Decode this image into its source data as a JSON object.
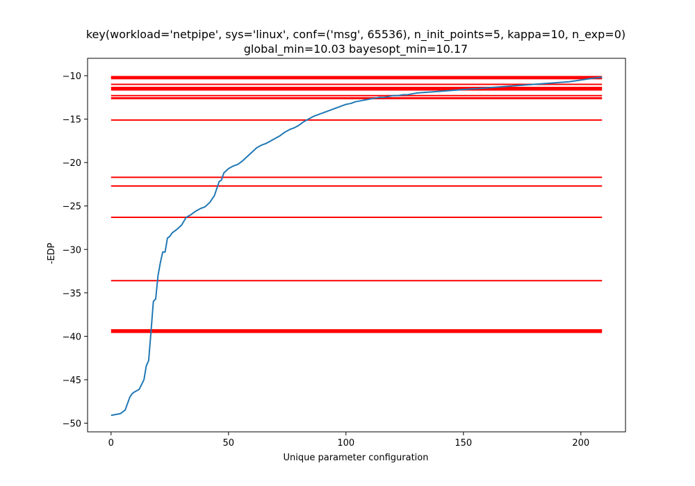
{
  "chart_data": {
    "type": "line",
    "title": "key(workload='netpipe', sys='linux', conf=('msg', 65536), n_init_points=5, kappa=10, n_exp=0)",
    "subtitle": "global_min=10.03 bayesopt_min=10.17",
    "xlabel": "Unique parameter configuration",
    "ylabel": "-EDP",
    "xlim": [
      -10,
      219
    ],
    "ylim": [
      -51,
      -8
    ],
    "xticks": [
      0,
      50,
      100,
      150,
      200
    ],
    "yticks": [
      -10,
      -15,
      -20,
      -25,
      -30,
      -35,
      -40,
      -45,
      -50
    ],
    "grid": false,
    "colors": {
      "series": "#1f77b4",
      "hlines": "#ff0000"
    },
    "series": [
      {
        "x": [
          0,
          2,
          4,
          6,
          8,
          9,
          10,
          12,
          14,
          15,
          16,
          17,
          18,
          19,
          20,
          21,
          22,
          23,
          24,
          25,
          26,
          28,
          30,
          32,
          34,
          36,
          38,
          40,
          42,
          44,
          46,
          47,
          48,
          50,
          52,
          54,
          56,
          58,
          60,
          62,
          64,
          66,
          68,
          70,
          72,
          74,
          76,
          78,
          80,
          82,
          84,
          86,
          88,
          90,
          92,
          94,
          96,
          98,
          100,
          102,
          104,
          106,
          108,
          110,
          112,
          114,
          116,
          118,
          120,
          122,
          124,
          126,
          128,
          130,
          135,
          140,
          145,
          150,
          155,
          160,
          165,
          170,
          175,
          180,
          185,
          190,
          195,
          200,
          205,
          209
        ],
        "y": [
          -49.1,
          -49.0,
          -48.9,
          -48.5,
          -47.0,
          -46.6,
          -46.4,
          -46.1,
          -45.0,
          -43.4,
          -42.8,
          -39.5,
          -36.0,
          -35.7,
          -33.0,
          -31.5,
          -30.3,
          -30.3,
          -28.7,
          -28.5,
          -28.1,
          -27.7,
          -27.2,
          -26.3,
          -26.0,
          -25.6,
          -25.3,
          -25.1,
          -24.6,
          -23.8,
          -22.2,
          -22.0,
          -21.2,
          -20.7,
          -20.4,
          -20.2,
          -19.8,
          -19.3,
          -18.8,
          -18.3,
          -18.0,
          -17.8,
          -17.5,
          -17.2,
          -16.9,
          -16.5,
          -16.2,
          -16.0,
          -15.7,
          -15.3,
          -15.0,
          -14.7,
          -14.5,
          -14.3,
          -14.1,
          -13.9,
          -13.7,
          -13.5,
          -13.3,
          -13.2,
          -13.0,
          -12.9,
          -12.8,
          -12.7,
          -12.6,
          -12.5,
          -12.5,
          -12.4,
          -12.3,
          -12.3,
          -12.2,
          -12.2,
          -12.1,
          -12.0,
          -11.9,
          -11.8,
          -11.7,
          -11.6,
          -11.5,
          -11.4,
          -11.3,
          -11.2,
          -11.1,
          -11.0,
          -10.9,
          -10.8,
          -10.7,
          -10.5,
          -10.3,
          -10.17
        ]
      }
    ],
    "hlines": {
      "xmin": 0,
      "xmax": 209,
      "lines": [
        {
          "y": -10.15,
          "thick": true
        },
        {
          "y": -10.3,
          "thick": true
        },
        {
          "y": -11.0,
          "thick": false
        },
        {
          "y": -11.4,
          "thick": true
        },
        {
          "y": -11.6,
          "thick": true
        },
        {
          "y": -12.3,
          "thick": false
        },
        {
          "y": -12.6,
          "thick": true
        },
        {
          "y": -15.1,
          "thick": false
        },
        {
          "y": -21.7,
          "thick": false
        },
        {
          "y": -22.7,
          "thick": false
        },
        {
          "y": -26.3,
          "thick": false
        },
        {
          "y": -33.6,
          "thick": false
        },
        {
          "y": -39.3,
          "thick": true
        },
        {
          "y": -39.5,
          "thick": true
        }
      ]
    }
  }
}
